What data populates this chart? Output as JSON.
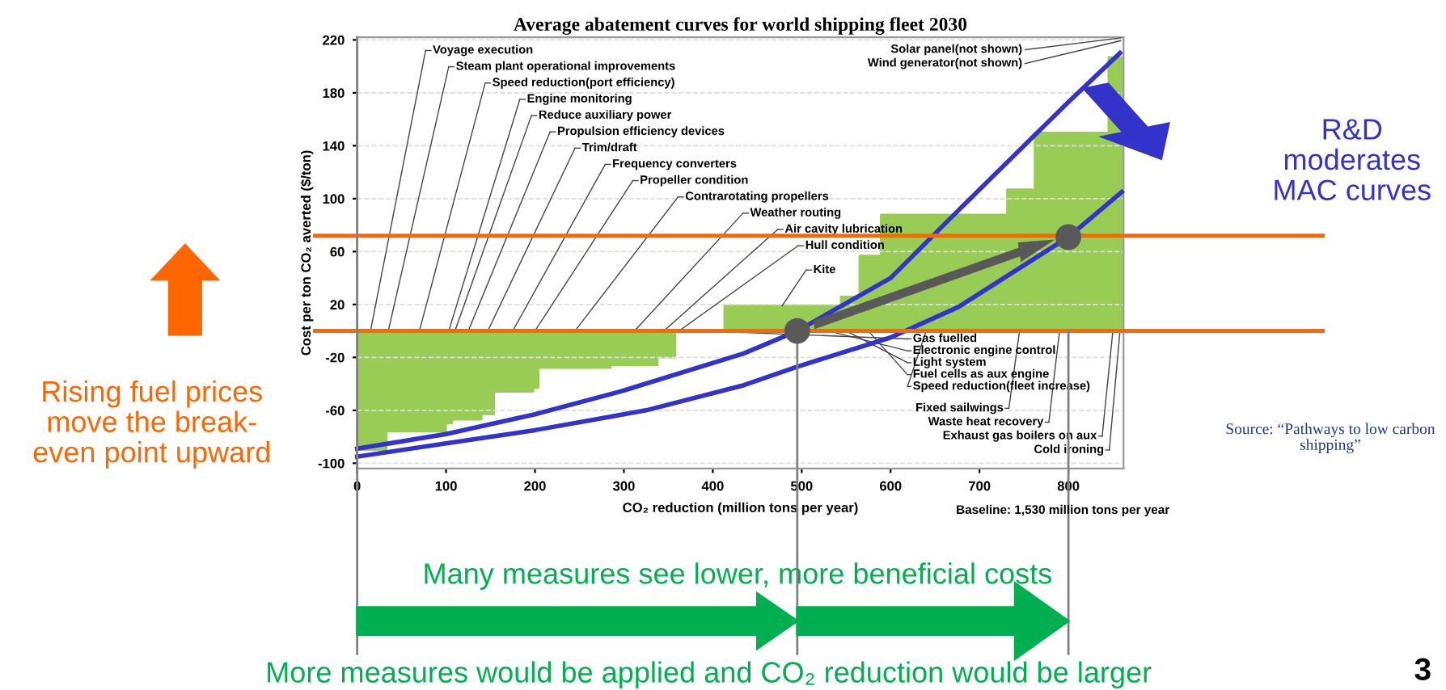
{
  "chart_data": {
    "type": "area",
    "title": "Average abatement curves for world shipping fleet 2030",
    "xlabel": "CO₂ reduction (million tons per year)",
    "ylabel": "Cost per ton CO₂ averted ($/ton)",
    "xlim": [
      0,
      862
    ],
    "ylim": [
      -104,
      222
    ],
    "xticks": [
      0,
      100,
      200,
      300,
      400,
      500,
      600,
      700,
      800
    ],
    "yticks": [
      -100,
      -60,
      -20,
      20,
      60,
      100,
      140,
      180,
      220
    ],
    "grid": "y",
    "legend": false,
    "series": [
      {
        "color": "#99cc55",
        "x": [
          0,
          33,
          33,
          100,
          100,
          107,
          107,
          140,
          140,
          154,
          154,
          198,
          198,
          204,
          204,
          285,
          285,
          338,
          338,
          358,
          358,
          413,
          413,
          544,
          544,
          565,
          565,
          589,
          589,
          731,
          731,
          762,
          762,
          845,
          845,
          862
        ],
        "values": [
          -90,
          -90,
          -76,
          -76,
          -70,
          -70,
          -67,
          -67,
          -63,
          -63,
          -46,
          -46,
          -43,
          -43,
          -28,
          -28,
          -26,
          -26,
          -20,
          -20,
          0,
          0,
          19,
          19,
          26,
          26,
          57,
          57,
          88,
          88,
          107,
          107,
          150,
          150,
          207,
          207
        ]
      },
      {
        "type": "line",
        "color": "#3333cc",
        "x": [
          0,
          100,
          200,
          300,
          435,
          495,
          600,
          676,
          800,
          858
        ],
        "values": [
          -89,
          -78,
          -63,
          -45,
          -17,
          0,
          40,
          91,
          173,
          210
        ]
      },
      {
        "type": "line",
        "color": "#3333cc",
        "x": [
          0,
          100,
          200,
          325,
          435,
          495,
          600,
          676,
          800,
          860
        ],
        "values": [
          -95,
          -85,
          -75,
          -60,
          -41,
          -27,
          -5,
          18,
          71,
          105
        ]
      },
      {
        "type": "scatter",
        "color": "#595959",
        "x": [
          495,
          800
        ],
        "values": [
          0,
          71
        ]
      }
    ],
    "ref_lines": [
      {
        "axis": "y",
        "value": 0,
        "color": "#ff6600"
      },
      {
        "axis": "y",
        "value": 72,
        "color": "#ff6600"
      },
      {
        "axis": "x",
        "value": 0,
        "color": "#808080"
      },
      {
        "axis": "x",
        "value": 495,
        "color": "#808080"
      },
      {
        "axis": "x",
        "value": 800,
        "color": "#808080"
      }
    ],
    "annotations": [
      "Rising fuel prices\nmove the break-\neven point upward",
      "R&D\nmoderates\nMAC curves",
      "Source: “Pathways to low carbon\nshipping”",
      "Baseline: 1,530 million tons per year",
      "Many measures see lower, more beneficial costs",
      "More measures would be applied and CO₂ reduction would be larger",
      "3",
      "Solar panel(not shown)",
      "Wind generator(not shown)",
      {
        "text": "Voyage execution",
        "x": 15,
        "y": 0
      },
      {
        "text": "Steam plant operational improvements",
        "x": 35,
        "y": 0
      },
      {
        "text": "Speed reduction(port efficiency)",
        "x": 70,
        "y": 0
      },
      {
        "text": "Engine monitoring",
        "x": 103,
        "y": 0
      },
      {
        "text": "Reduce auxiliary power",
        "x": 110,
        "y": 0
      },
      {
        "text": "Propulsion efficiency devices",
        "x": 125,
        "y": 0
      },
      {
        "text": "Trim/draft",
        "x": 147,
        "y": 0
      },
      {
        "text": "Frequency converters",
        "x": 175,
        "y": 0
      },
      {
        "text": "Propeller condition",
        "x": 200,
        "y": 0
      },
      {
        "text": "Contrarotating propellers",
        "x": 245,
        "y": 0
      },
      {
        "text": "Weather routing",
        "x": 312,
        "y": 0
      },
      {
        "text": "Air cavity lubrication",
        "x": 345,
        "y": 0
      },
      {
        "text": "Hull condition",
        "x": 362,
        "y": 0
      },
      {
        "text": "Kite",
        "x": 478,
        "y": 19
      },
      {
        "text": "Gas fuelled",
        "x": 390,
        "y": 0
      },
      {
        "text": "Electronic engine control",
        "x": 530,
        "y": 0
      },
      {
        "text": "Light system",
        "x": 550,
        "y": 0
      },
      {
        "text": "Fuel cells as aux engine",
        "x": 575,
        "y": 0
      },
      {
        "text": "Speed reduction(fleet increase)",
        "x": 640,
        "y": 0
      },
      {
        "text": "Fixed sailwings",
        "x": 745,
        "y": 0
      },
      {
        "text": "Waste heat recovery",
        "x": 790,
        "y": 0
      },
      {
        "text": "Exhaust gas boilers on aux",
        "x": 850,
        "y": 0
      },
      {
        "text": "Cold ironing",
        "x": 858,
        "y": 0
      }
    ]
  }
}
